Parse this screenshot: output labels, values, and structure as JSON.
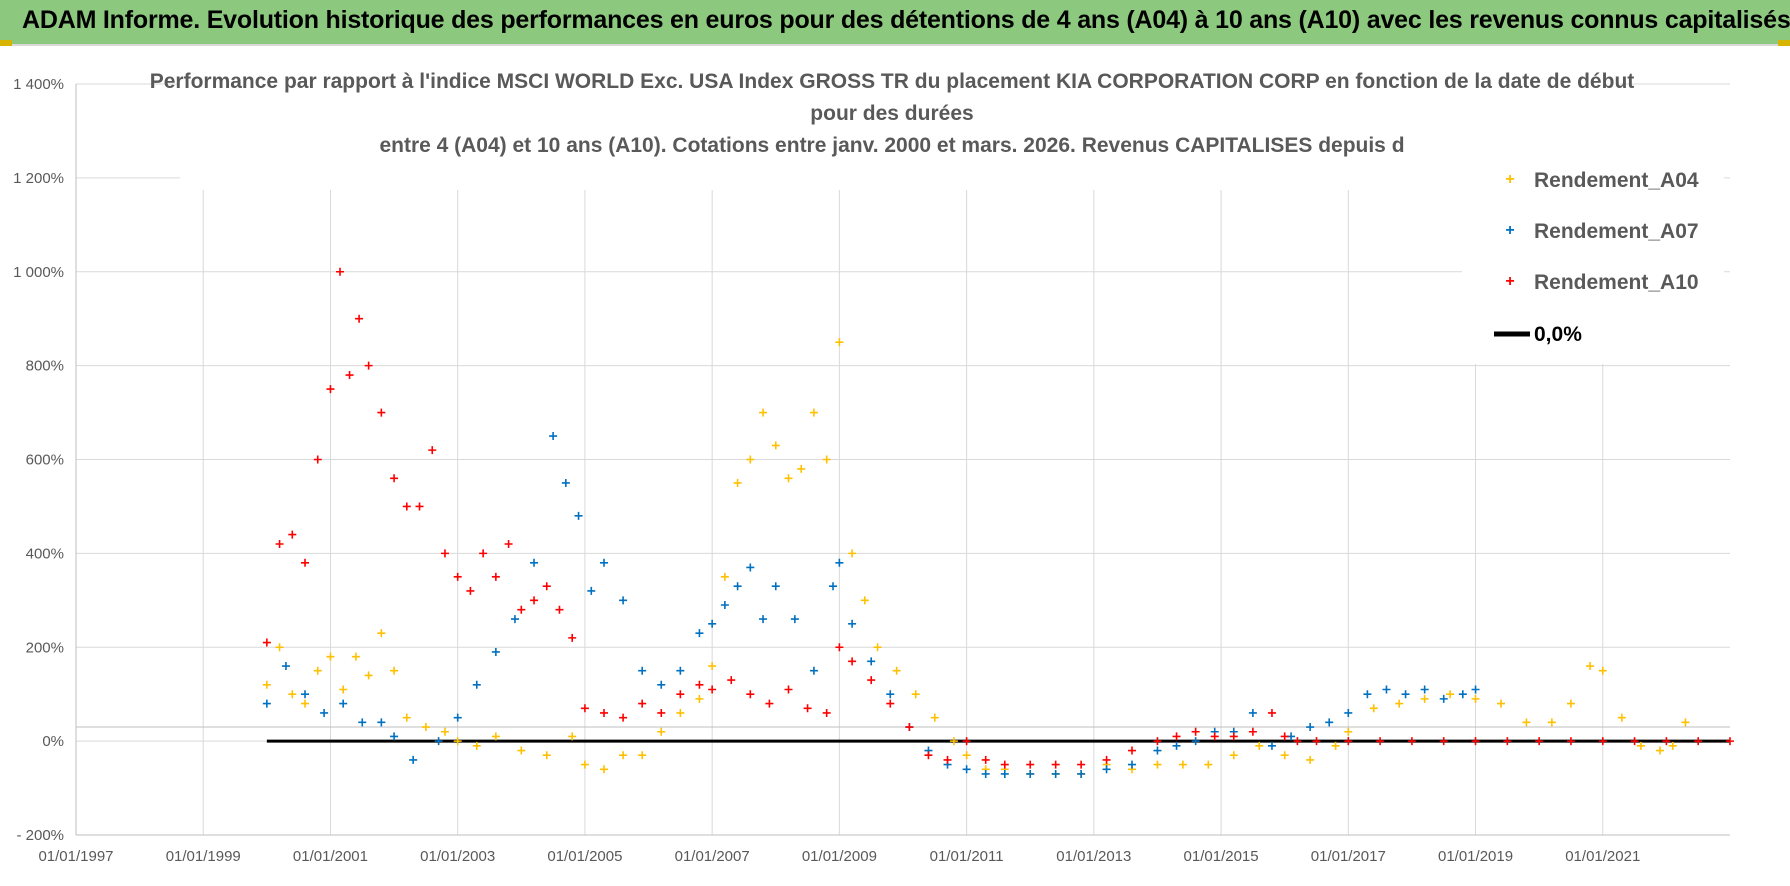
{
  "banner": {
    "title": "ADAM Informe. Evolution historique des performances en euros pour des détentions de 4 ans (A04) à 10 ans (A10) avec les revenus connus capitalisés"
  },
  "colors": {
    "banner": "#8cc97e",
    "A04": "#ffc000",
    "A07": "#0070c0",
    "A10": "#ff0000",
    "zero": "#000000",
    "grid": "#d9d9d9",
    "text": "#595959"
  },
  "chart_data": {
    "type": "scatter",
    "title_lines": [
      "Performance par rapport à l'indice MSCI WORLD Exc. USA Index GROSS TR  du placement KIA CORPORATION CORP en fonction de la date de début",
      "pour des durées",
      "entre 4 (A04) et 10 ans (A10). Cotations entre janv. 2000 et mars. 2026. Revenus CAPITALISES depuis d"
    ],
    "xlabel": "",
    "ylabel": "",
    "x_range": [
      1997.0,
      2023.0
    ],
    "y_range": [
      -200,
      1400
    ],
    "y_ticks": [
      -200,
      0,
      200,
      400,
      600,
      800,
      1000,
      1200,
      1400
    ],
    "y_tick_labels": [
      "- 200%",
      "0%",
      "200%",
      "400%",
      "600%",
      "800%",
      "1 000%",
      "1 200%",
      "1 400%"
    ],
    "x_ticks": [
      1997,
      1999,
      2001,
      2003,
      2005,
      2007,
      2009,
      2011,
      2013,
      2015,
      2017,
      2019,
      2021
    ],
    "x_tick_labels": [
      "01/01/1997",
      "01/01/1999",
      "01/01/2001",
      "01/01/2003",
      "01/01/2005",
      "01/01/2007",
      "01/01/2009",
      "01/01/2011",
      "01/01/2013",
      "01/01/2015",
      "01/01/2017",
      "01/01/2019",
      "01/01/2021"
    ],
    "zero_line": {
      "label": "0,0%",
      "x_start": 2000.0,
      "x_end": 2023.0,
      "value": 0
    },
    "legend_position": "top-right",
    "series": [
      {
        "name": "Rendement_A04",
        "color": "#ffc000",
        "x": [
          2000.0,
          2000.2,
          2000.4,
          2000.6,
          2000.8,
          2001.0,
          2001.2,
          2001.4,
          2001.6,
          2001.8,
          2002.0,
          2002.2,
          2002.5,
          2002.8,
          2003.0,
          2003.3,
          2003.6,
          2004.0,
          2004.4,
          2004.8,
          2005.0,
          2005.3,
          2005.6,
          2005.9,
          2006.2,
          2006.5,
          2006.8,
          2007.0,
          2007.2,
          2007.4,
          2007.6,
          2007.8,
          2008.0,
          2008.2,
          2008.4,
          2008.6,
          2008.8,
          2009.0,
          2009.2,
          2009.4,
          2009.6,
          2009.9,
          2010.2,
          2010.5,
          2010.8,
          2011.0,
          2011.3,
          2011.6,
          2012.0,
          2012.4,
          2012.8,
          2013.2,
          2013.6,
          2014.0,
          2014.4,
          2014.8,
          2015.2,
          2015.6,
          2016.0,
          2016.4,
          2016.8,
          2017.0,
          2017.4,
          2017.8,
          2018.2,
          2018.6,
          2019.0,
          2019.4,
          2019.8,
          2020.2,
          2020.5,
          2020.8,
          2021.0,
          2021.3,
          2021.6,
          2021.9,
          2022.1,
          2022.3
        ],
        "values": [
          120,
          200,
          100,
          80,
          150,
          180,
          110,
          180,
          140,
          230,
          150,
          50,
          30,
          20,
          0,
          -10,
          10,
          -20,
          -30,
          10,
          -50,
          -60,
          -30,
          -30,
          20,
          60,
          90,
          160,
          350,
          550,
          600,
          700,
          630,
          560,
          580,
          700,
          600,
          850,
          400,
          300,
          200,
          150,
          100,
          50,
          0,
          -30,
          -60,
          -60,
          -70,
          -70,
          -70,
          -50,
          -60,
          -50,
          -50,
          -50,
          -30,
          -10,
          -30,
          -40,
          -10,
          20,
          70,
          80,
          90,
          100,
          90,
          80,
          40,
          40,
          80,
          160,
          150,
          50,
          -10,
          -20,
          -10,
          40
        ]
      },
      {
        "name": "Rendement_A07",
        "color": "#0070c0",
        "x": [
          2000.0,
          2000.3,
          2000.6,
          2000.9,
          2001.2,
          2001.5,
          2001.8,
          2002.0,
          2002.3,
          2002.7,
          2003.0,
          2003.3,
          2003.6,
          2003.9,
          2004.2,
          2004.5,
          2004.7,
          2004.9,
          2005.1,
          2005.3,
          2005.6,
          2005.9,
          2006.2,
          2006.5,
          2006.8,
          2007.0,
          2007.2,
          2007.4,
          2007.6,
          2007.8,
          2008.0,
          2008.3,
          2008.6,
          2008.9,
          2009.0,
          2009.2,
          2009.5,
          2009.8,
          2010.1,
          2010.4,
          2010.7,
          2011.0,
          2011.3,
          2011.6,
          2012.0,
          2012.4,
          2012.8,
          2013.2,
          2013.6,
          2014.0,
          2014.3,
          2014.6,
          2014.9,
          2015.2,
          2015.5,
          2015.8,
          2016.1,
          2016.4,
          2016.7,
          2017.0,
          2017.3,
          2017.6,
          2017.9,
          2018.2,
          2018.5,
          2018.8,
          2019.0
        ],
        "values": [
          80,
          160,
          100,
          60,
          80,
          40,
          40,
          10,
          -40,
          0,
          50,
          120,
          190,
          260,
          380,
          650,
          550,
          480,
          320,
          380,
          300,
          150,
          120,
          150,
          230,
          250,
          290,
          330,
          370,
          260,
          330,
          260,
          150,
          330,
          380,
          250,
          170,
          100,
          30,
          -20,
          -50,
          -60,
          -70,
          -70,
          -70,
          -70,
          -70,
          -60,
          -50,
          -20,
          -10,
          0,
          20,
          20,
          60,
          -10,
          10,
          30,
          40,
          60,
          100,
          110,
          100,
          110,
          90,
          100,
          110
        ]
      },
      {
        "name": "Rendement_A10",
        "color": "#ff0000",
        "x": [
          2000.0,
          2000.2,
          2000.4,
          2000.6,
          2000.8,
          2001.0,
          2001.15,
          2001.3,
          2001.45,
          2001.6,
          2001.8,
          2002.0,
          2002.2,
          2002.4,
          2002.6,
          2002.8,
          2003.0,
          2003.2,
          2003.4,
          2003.6,
          2003.8,
          2004.0,
          2004.2,
          2004.4,
          2004.6,
          2004.8,
          2005.0,
          2005.3,
          2005.6,
          2005.9,
          2006.2,
          2006.5,
          2006.8,
          2007.0,
          2007.3,
          2007.6,
          2007.9,
          2008.2,
          2008.5,
          2008.8,
          2009.0,
          2009.2,
          2009.5,
          2009.8,
          2010.1,
          2010.4,
          2010.7,
          2011.0,
          2011.3,
          2011.6,
          2012.0,
          2012.4,
          2012.8,
          2013.2,
          2013.6,
          2014.0,
          2014.3,
          2014.6,
          2014.9,
          2015.2,
          2015.5,
          2015.8,
          2016.0,
          2016.2,
          2016.5,
          2017.0,
          2017.5,
          2018.0,
          2018.5,
          2019.0,
          2019.5,
          2020.0,
          2020.5,
          2021.0,
          2021.5,
          2022.0,
          2022.5,
          2023.0
        ],
        "values": [
          210,
          420,
          440,
          380,
          600,
          750,
          1000,
          780,
          900,
          800,
          700,
          560,
          500,
          500,
          620,
          400,
          350,
          320,
          400,
          350,
          420,
          280,
          300,
          330,
          280,
          220,
          70,
          60,
          50,
          80,
          60,
          100,
          120,
          110,
          130,
          100,
          80,
          110,
          70,
          60,
          200,
          170,
          130,
          80,
          30,
          -30,
          -40,
          0,
          -40,
          -50,
          -50,
          -50,
          -50,
          -40,
          -20,
          0,
          10,
          20,
          10,
          10,
          20,
          60,
          10,
          0,
          0,
          0,
          0,
          0,
          0,
          0,
          0,
          0,
          0,
          0,
          0,
          0,
          0,
          0
        ]
      }
    ]
  }
}
